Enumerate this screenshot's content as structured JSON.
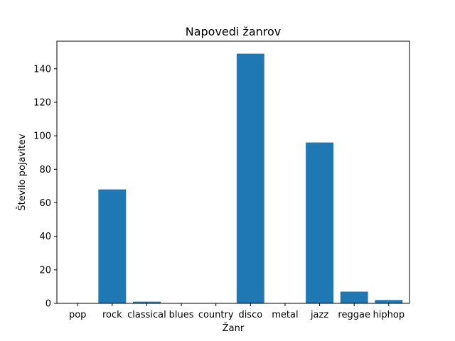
{
  "chart_data": {
    "type": "bar",
    "title": "Napovedi žanrov",
    "xlabel": "Žanr",
    "ylabel": "Število pojavitev",
    "categories": [
      "pop",
      "rock",
      "classical",
      "blues",
      "country",
      "disco",
      "metal",
      "jazz",
      "reggae",
      "hiphop"
    ],
    "values": [
      0,
      68,
      1,
      0,
      0,
      149,
      0,
      96,
      7,
      2
    ],
    "yticks": [
      0,
      20,
      40,
      60,
      80,
      100,
      120,
      140
    ],
    "ylim": [
      0,
      156.45
    ],
    "bar_color": "#1f77b4",
    "grid": false,
    "legend": "none"
  }
}
